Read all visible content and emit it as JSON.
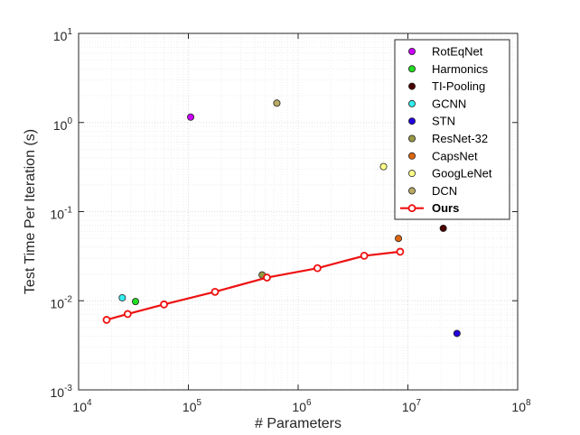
{
  "chart_data": {
    "type": "scatter",
    "xscale": "log",
    "yscale": "log",
    "xlim": [
      10000,
      100000000
    ],
    "ylim": [
      0.001,
      10
    ],
    "xlabel": "# Parameters",
    "ylabel": "Test Time Per Iteration (s)",
    "grid": true,
    "legend_position": "top-right",
    "x_ticks": [
      {
        "base": "10",
        "exp": "4"
      },
      {
        "base": "10",
        "exp": "5"
      },
      {
        "base": "10",
        "exp": "6"
      },
      {
        "base": "10",
        "exp": "7"
      },
      {
        "base": "10",
        "exp": "8"
      }
    ],
    "y_ticks": [
      {
        "base": "10",
        "exp": "1"
      },
      {
        "base": "10",
        "exp": "0"
      },
      {
        "base": "10",
        "exp": "-1"
      },
      {
        "base": "10",
        "exp": "-2"
      },
      {
        "base": "10",
        "exp": "-3"
      }
    ],
    "series": [
      {
        "name": "RotEqNet",
        "color": "#cc00ff",
        "type": "scatter",
        "x": [
          105000
        ],
        "y": [
          1.15
        ]
      },
      {
        "name": "Harmonics",
        "color": "#22dd22",
        "type": "scatter",
        "x": [
          33000
        ],
        "y": [
          0.0098
        ]
      },
      {
        "name": "TI-Pooling",
        "color": "#4a0000",
        "type": "scatter",
        "x": [
          21000000
        ],
        "y": [
          0.065
        ]
      },
      {
        "name": "GCNN",
        "color": "#33eeee",
        "type": "scatter",
        "x": [
          25000
        ],
        "y": [
          0.0108
        ]
      },
      {
        "name": "STN",
        "color": "#2200dd",
        "type": "scatter",
        "x": [
          28000000
        ],
        "y": [
          0.0043
        ]
      },
      {
        "name": "ResNet-32",
        "color": "#999944",
        "type": "scatter",
        "x": [
          470000
        ],
        "y": [
          0.0195
        ]
      },
      {
        "name": "CapsNet",
        "color": "#dd6611",
        "type": "scatter",
        "x": [
          8200000
        ],
        "y": [
          0.05
        ]
      },
      {
        "name": "GoogLeNet",
        "color": "#ffff88",
        "type": "scatter",
        "x": [
          6000000
        ],
        "y": [
          0.32
        ]
      },
      {
        "name": "DCN",
        "color": "#bbaa66",
        "type": "scatter",
        "x": [
          640000
        ],
        "y": [
          1.65
        ]
      },
      {
        "name": "Ours",
        "color": "#ee1111",
        "type": "line",
        "x": [
          18000,
          28000,
          60000,
          175000,
          520000,
          1500000,
          4000000,
          8500000
        ],
        "y": [
          0.0061,
          0.0071,
          0.0091,
          0.0126,
          0.0182,
          0.0232,
          0.032,
          0.0355
        ]
      }
    ]
  }
}
